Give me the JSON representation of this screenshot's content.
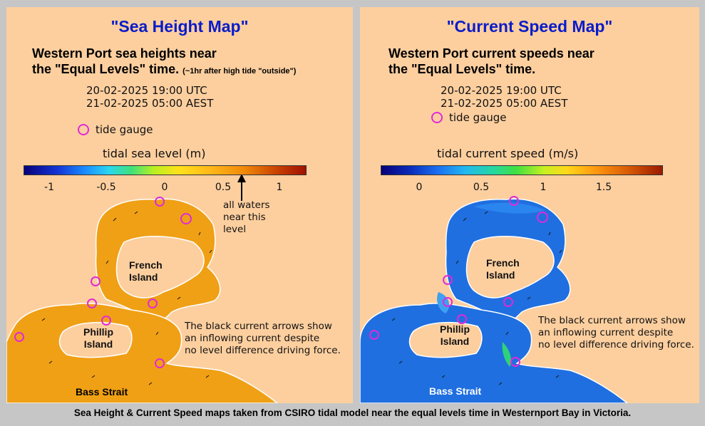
{
  "left": {
    "title": "\"Sea Height Map\"",
    "heading_line1": "Western Port sea heights near",
    "heading_line2": "the \"Equal Levels\" time.",
    "heading_note": "(~1hr after high tide \"outside\")",
    "time_utc": "20-02-2025 19:00 UTC",
    "time_local": "21-02-2025 05:00 AEST",
    "gauge_label": "tide gauge",
    "colorbar_title": "tidal sea level (m)",
    "ticks": [
      "-1",
      "-0.5",
      "0",
      "0.5",
      "1"
    ],
    "pointer_note": [
      "all waters",
      "near this",
      "level"
    ],
    "island_french": [
      "French",
      "Island"
    ],
    "island_phillip": [
      "Phillip",
      "Island"
    ],
    "strait_label": "Bass Strait",
    "arrow_note": [
      "The black current arrows show",
      "an inflowing current despite",
      "no level difference driving force."
    ],
    "water_color": "#f0a015",
    "land_color": "#fdcf9f"
  },
  "right": {
    "title": "\"Current Speed Map\"",
    "heading_line1": "Western Port current speeds near",
    "heading_line2": "the \"Equal Levels\" time.",
    "time_utc": "20-02-2025 19:00 UTC",
    "time_local": "21-02-2025 05:00 AEST",
    "gauge_label": "tide gauge",
    "colorbar_title": "tidal current speed (m/s)",
    "ticks": [
      "0",
      "0.5",
      "1",
      "1.5"
    ],
    "island_french": [
      "French",
      "Island"
    ],
    "island_phillip": [
      "Phillip",
      "Island"
    ],
    "strait_label": "Bass Strait",
    "arrow_note": [
      "The black current arrows show",
      "an inflowing current despite",
      "no level difference driving force."
    ],
    "water_color": "#1f6fe0",
    "land_color": "#fdcf9f"
  },
  "caption": "Sea Height & Current Speed maps taken from CSIRO tidal model near the equal levels time in Westernport Bay in Victoria."
}
